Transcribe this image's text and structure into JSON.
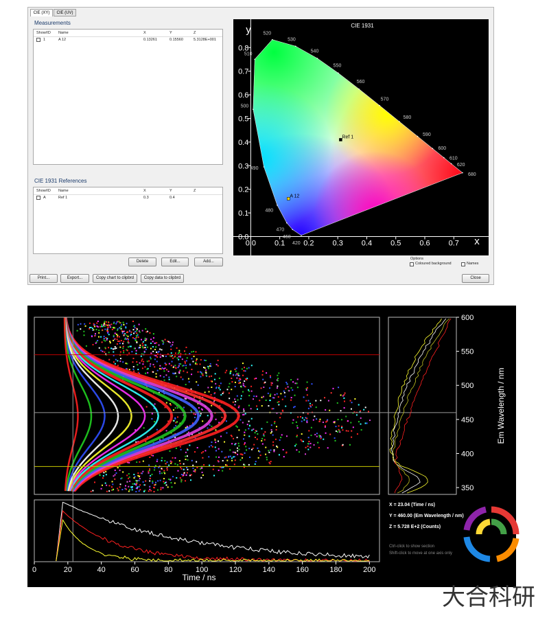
{
  "window": {
    "tabs": [
      "CIE (XY)",
      "CIE (UV)"
    ],
    "measurements": {
      "title": "Measurements",
      "columns": [
        "Show/ID",
        "Name",
        "X",
        "Y",
        "Z"
      ],
      "rows": [
        [
          "1",
          "A 12",
          "0.13261",
          "0.15560",
          "5.3128E+001"
        ]
      ]
    },
    "references": {
      "title": "CIE 1931 References",
      "columns": [
        "Show/ID",
        "Name",
        "X",
        "Y",
        "Z"
      ],
      "rows": [
        [
          "A",
          "Ref 1",
          "0.3",
          "0.4"
        ]
      ]
    },
    "table_buttons": [
      "Delete",
      "Edit...",
      "Add..."
    ],
    "footer_buttons": [
      "Print...",
      "Export...",
      "Copy chart to clipbrd",
      "Copy data to clipbrd"
    ],
    "close_button": "Close",
    "options": {
      "title": "Options",
      "items": [
        "Coloured background",
        "Names"
      ]
    }
  },
  "cie_chart": {
    "type": "scatter",
    "title": "CIE 1931",
    "x_label": "x",
    "y_label": "y",
    "xlim": [
      -0.06,
      0.82
    ],
    "ylim": [
      -0.08,
      0.92
    ],
    "xticks": [
      {
        "value": 0,
        "label": "0.0"
      },
      0.1,
      0.2,
      0.3,
      0.4,
      0.5,
      0.6,
      0.7
    ],
    "yticks": [
      {
        "value": 0,
        "label": "0.0"
      },
      0.1,
      0.2,
      0.3,
      0.4,
      0.5,
      0.6,
      0.7,
      0.8
    ],
    "locus": {
      "wavelengths": [
        420,
        460,
        470,
        480,
        490,
        500,
        510,
        520,
        530,
        540,
        550,
        560,
        570,
        580,
        590,
        600,
        610,
        620,
        680
      ],
      "x": [
        0.1741,
        0.144,
        0.1241,
        0.0913,
        0.0454,
        0.0082,
        0.0139,
        0.0743,
        0.1547,
        0.2296,
        0.3016,
        0.3731,
        0.4441,
        0.5125,
        0.5752,
        0.627,
        0.6658,
        0.6915,
        0.73
      ],
      "y": [
        0.005,
        0.0297,
        0.0578,
        0.1327,
        0.295,
        0.5384,
        0.7502,
        0.8338,
        0.8059,
        0.7543,
        0.6923,
        0.6245,
        0.5547,
        0.4866,
        0.4242,
        0.3725,
        0.334,
        0.3083,
        0.27
      ]
    },
    "points": [
      {
        "name": "Ref 1",
        "x": 0.31,
        "y": 0.41,
        "color": "#000000"
      },
      {
        "name": "A 12",
        "x": 0.13,
        "y": 0.16,
        "color": "#ffd400"
      }
    ]
  },
  "tres_chart": {
    "type": "heatmap",
    "x_label": "Time / ns",
    "y_label": "Em Wavelength / nm",
    "xlim": [
      0,
      206
    ],
    "xticks": [
      0,
      20,
      40,
      60,
      80,
      100,
      120,
      140,
      160,
      180,
      200
    ],
    "ylim": [
      340,
      600
    ],
    "yticks": [
      350,
      400,
      450,
      500,
      550,
      600
    ],
    "cursor": {
      "x": 23.04,
      "y": 460
    },
    "guide_lines": [
      {
        "value": 545,
        "color": "#c00000"
      },
      {
        "value": 381,
        "color": "#c8c800"
      }
    ],
    "readout": [
      "X = 23.04 (Time / ns)",
      "Y = 460.00 (Em Wavelength / nm)",
      "Z = 5.728 E+2 (Counts)"
    ],
    "notes": [
      "Ctrl-click to show section",
      "Shift-click to move at one axis only"
    ]
  },
  "watermark": "大合科研"
}
